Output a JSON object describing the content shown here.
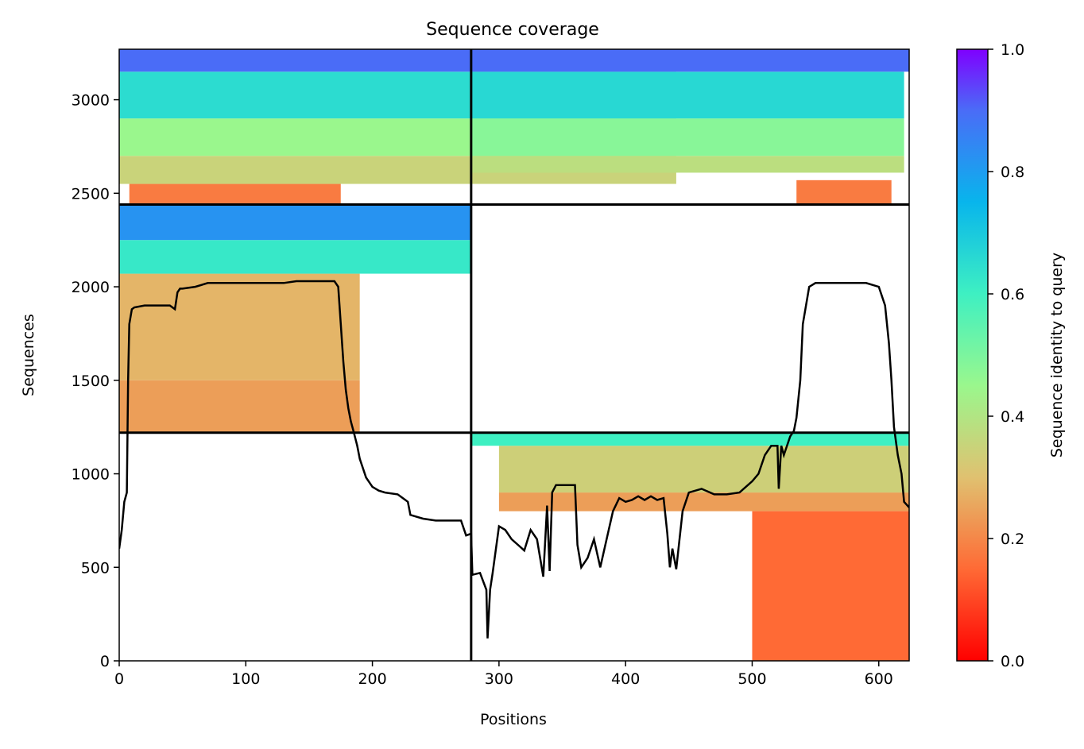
{
  "chart_data": {
    "type": "heatmap",
    "title": "Sequence coverage",
    "xlabel": "Positions",
    "ylabel": "Sequences",
    "xlim": [
      0,
      624
    ],
    "ylim": [
      0,
      3270
    ],
    "x_ticks": [
      0,
      100,
      200,
      300,
      400,
      500,
      600
    ],
    "y_ticks": [
      0,
      500,
      1000,
      1500,
      2000,
      2500,
      3000
    ],
    "colorbar": {
      "label": "Sequence identity to query",
      "range": [
        0.0,
        1.0
      ],
      "ticks": [
        "0.0",
        "0.2",
        "0.4",
        "0.6",
        "0.8",
        "1.0"
      ],
      "colormap": "rainbow_r"
    },
    "chain_boundaries": {
      "x": [
        278
      ],
      "y": [
        1220,
        2440
      ]
    },
    "coverage_blocks": [
      {
        "x": [
          8,
          175
        ],
        "y": [
          2440,
          2550
        ],
        "identity": 0.18
      },
      {
        "x": [
          0,
          440
        ],
        "y": [
          2550,
          2700
        ],
        "identity": 0.35
      },
      {
        "x": [
          0,
          440
        ],
        "y": [
          2700,
          2900
        ],
        "identity": 0.45
      },
      {
        "x": [
          0,
          440
        ],
        "y": [
          2900,
          3150
        ],
        "identity": 0.65
      },
      {
        "x": [
          0,
          278
        ],
        "y": [
          3150,
          3270
        ],
        "identity": 0.9
      },
      {
        "x": [
          278,
          620
        ],
        "y": [
          2610,
          2700
        ],
        "identity": 0.38
      },
      {
        "x": [
          278,
          620
        ],
        "y": [
          2700,
          2900
        ],
        "identity": 0.48
      },
      {
        "x": [
          278,
          620
        ],
        "y": [
          2900,
          3150
        ],
        "identity": 0.66
      },
      {
        "x": [
          278,
          624
        ],
        "y": [
          3150,
          3270
        ],
        "identity": 0.9
      },
      {
        "x": [
          535,
          610
        ],
        "y": [
          2440,
          2570
        ],
        "identity": 0.18
      },
      {
        "x": [
          0,
          190
        ],
        "y": [
          1220,
          1500
        ],
        "identity": 0.24
      },
      {
        "x": [
          0,
          190
        ],
        "y": [
          1500,
          2070
        ],
        "identity": 0.28
      },
      {
        "x": [
          0,
          278
        ],
        "y": [
          2070,
          2250
        ],
        "identity": 0.62
      },
      {
        "x": [
          0,
          278
        ],
        "y": [
          2250,
          2440
        ],
        "identity": 0.82
      },
      {
        "x": [
          300,
          624
        ],
        "y": [
          800,
          900
        ],
        "identity": 0.24
      },
      {
        "x": [
          300,
          624
        ],
        "y": [
          900,
          1150
        ],
        "identity": 0.34
      },
      {
        "x": [
          278,
          624
        ],
        "y": [
          1150,
          1220
        ],
        "identity": 0.6
      },
      {
        "x": [
          500,
          624
        ],
        "y": [
          0,
          800
        ],
        "identity": 0.15
      }
    ],
    "coverage_line": {
      "x": [
        0,
        2,
        4,
        6,
        7,
        8,
        10,
        12,
        20,
        30,
        40,
        44,
        46,
        48,
        50,
        60,
        70,
        80,
        90,
        100,
        110,
        120,
        130,
        140,
        150,
        160,
        170,
        173,
        175,
        177,
        179,
        181,
        183,
        185,
        188,
        190,
        195,
        200,
        205,
        210,
        220,
        228,
        230,
        240,
        250,
        260,
        270,
        274,
        278,
        279,
        285,
        290,
        291,
        293,
        295,
        300,
        305,
        310,
        315,
        320,
        325,
        330,
        335,
        338,
        340,
        342,
        345,
        350,
        355,
        360,
        362,
        365,
        370,
        375,
        380,
        385,
        390,
        395,
        400,
        405,
        410,
        415,
        420,
        425,
        430,
        433,
        435,
        437,
        440,
        445,
        450,
        460,
        470,
        480,
        490,
        500,
        505,
        510,
        515,
        520,
        521,
        523,
        525,
        530,
        533,
        535,
        538,
        540,
        545,
        550,
        560,
        570,
        580,
        590,
        600,
        605,
        608,
        610,
        612,
        615,
        618,
        620,
        624
      ],
      "y": [
        600,
        700,
        850,
        900,
        1500,
        1800,
        1880,
        1890,
        1900,
        1900,
        1900,
        1880,
        1970,
        1990,
        1990,
        2000,
        2020,
        2020,
        2020,
        2020,
        2020,
        2020,
        2020,
        2030,
        2030,
        2030,
        2030,
        2000,
        1800,
        1600,
        1450,
        1350,
        1280,
        1230,
        1150,
        1080,
        980,
        930,
        910,
        900,
        890,
        850,
        780,
        760,
        750,
        750,
        750,
        670,
        680,
        460,
        470,
        380,
        120,
        380,
        470,
        720,
        700,
        650,
        620,
        590,
        700,
        650,
        450,
        830,
        480,
        900,
        940,
        940,
        940,
        940,
        620,
        500,
        550,
        650,
        500,
        650,
        800,
        870,
        850,
        860,
        880,
        860,
        880,
        860,
        870,
        680,
        500,
        600,
        490,
        800,
        900,
        920,
        890,
        890,
        900,
        960,
        1000,
        1100,
        1150,
        1150,
        920,
        1150,
        1100,
        1200,
        1230,
        1300,
        1500,
        1800,
        2000,
        2020,
        2020,
        2020,
        2020,
        2020,
        2000,
        1900,
        1700,
        1500,
        1250,
        1100,
        1000,
        850,
        820
      ]
    }
  }
}
